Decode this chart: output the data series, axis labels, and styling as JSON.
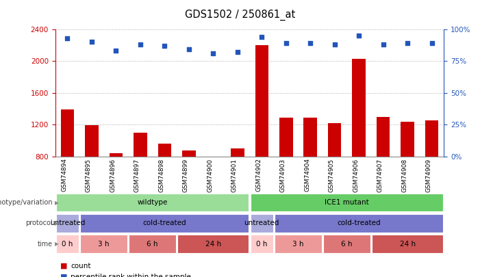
{
  "title": "GDS1502 / 250861_at",
  "samples": [
    "GSM74894",
    "GSM74895",
    "GSM74896",
    "GSM74897",
    "GSM74898",
    "GSM74899",
    "GSM74900",
    "GSM74901",
    "GSM74902",
    "GSM74903",
    "GSM74904",
    "GSM74905",
    "GSM74906",
    "GSM74907",
    "GSM74908",
    "GSM74909"
  ],
  "counts": [
    1390,
    1195,
    840,
    1095,
    960,
    880,
    760,
    900,
    2200,
    1290,
    1290,
    1220,
    2030,
    1295,
    1235,
    1255
  ],
  "percentile_ranks": [
    93,
    90,
    83,
    88,
    87,
    84,
    81,
    82,
    94,
    89,
    89,
    88,
    95,
    88,
    89,
    89
  ],
  "bar_color": "#cc0000",
  "dot_color": "#2255bb",
  "ymin": 800,
  "ymax": 2400,
  "yticks": [
    800,
    1200,
    1600,
    2000,
    2400
  ],
  "y2ticks": [
    0,
    25,
    50,
    75,
    100
  ],
  "y2labels": [
    "0%",
    "25%",
    "50%",
    "75%",
    "100%"
  ],
  "genotype_blocks": [
    {
      "label": "wildtype",
      "start": 0,
      "end": 8,
      "color": "#99dd99"
    },
    {
      "label": "ICE1 mutant",
      "start": 8,
      "end": 16,
      "color": "#66cc66"
    }
  ],
  "protocol_blocks": [
    {
      "label": "untreated",
      "start": 0,
      "end": 1,
      "color": "#aaaadd"
    },
    {
      "label": "cold-treated",
      "start": 1,
      "end": 8,
      "color": "#7777cc"
    },
    {
      "label": "untreated",
      "start": 8,
      "end": 9,
      "color": "#aaaadd"
    },
    {
      "label": "cold-treated",
      "start": 9,
      "end": 16,
      "color": "#7777cc"
    }
  ],
  "time_blocks": [
    {
      "label": "0 h",
      "start": 0,
      "end": 1,
      "color": "#ffcccc"
    },
    {
      "label": "3 h",
      "start": 1,
      "end": 3,
      "color": "#ee9999"
    },
    {
      "label": "6 h",
      "start": 3,
      "end": 5,
      "color": "#dd7777"
    },
    {
      "label": "24 h",
      "start": 5,
      "end": 8,
      "color": "#cc5555"
    },
    {
      "label": "0 h",
      "start": 8,
      "end": 9,
      "color": "#ffcccc"
    },
    {
      "label": "3 h",
      "start": 9,
      "end": 11,
      "color": "#ee9999"
    },
    {
      "label": "6 h",
      "start": 11,
      "end": 13,
      "color": "#dd7777"
    },
    {
      "label": "24 h",
      "start": 13,
      "end": 16,
      "color": "#cc5555"
    }
  ],
  "row_labels": [
    "genotype/variation",
    "protocol",
    "time"
  ],
  "bg_color": "#ffffff",
  "grid_color": "#aaaaaa",
  "label_color_left": "#cc0000",
  "label_color_right": "#2255bb",
  "legend_count_color": "#cc0000",
  "legend_pct_color": "#2255bb"
}
